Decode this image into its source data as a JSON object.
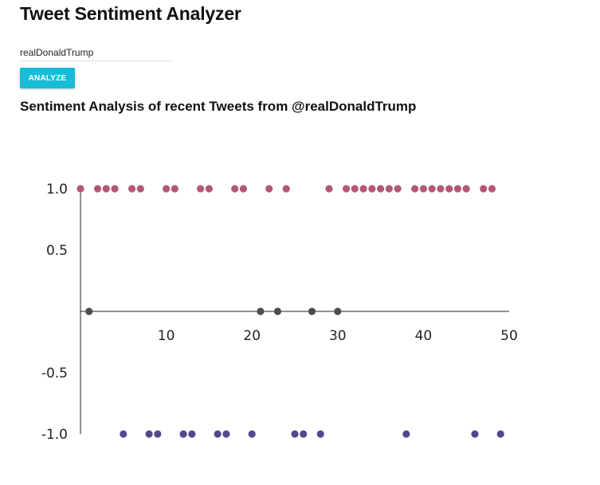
{
  "app": {
    "title": "Tweet Sentiment Analyzer"
  },
  "form": {
    "username_value": "realDonaldTrump",
    "analyze_label": "ANALYZE"
  },
  "chart_heading": "Sentiment Analysis of recent Tweets from @realDonaldTrump",
  "colors": {
    "button": "#17bcd6",
    "positive": "#b35874",
    "neutral": "#4d4d4d",
    "negative": "#53488f",
    "axis": "#222222"
  },
  "chart_data": {
    "type": "scatter",
    "title": "Sentiment Analysis of recent Tweets from @realDonaldTrump",
    "xlabel": "",
    "ylabel": "",
    "xlim": [
      0,
      50
    ],
    "ylim": [
      -1,
      1
    ],
    "x_ticks": [
      10,
      20,
      30,
      40,
      50
    ],
    "y_ticks": [
      1.0,
      0.5,
      -0.5,
      -1.0
    ],
    "x_tick_labels": [
      "10",
      "20",
      "30",
      "40",
      "50"
    ],
    "y_tick_labels": [
      "1.0",
      "0.5",
      "-0.5",
      "-1.0"
    ],
    "grid": false,
    "points": [
      {
        "x": 0,
        "y": 1
      },
      {
        "x": 1,
        "y": 0
      },
      {
        "x": 2,
        "y": 1
      },
      {
        "x": 3,
        "y": 1
      },
      {
        "x": 4,
        "y": 1
      },
      {
        "x": 5,
        "y": -1
      },
      {
        "x": 6,
        "y": 1
      },
      {
        "x": 7,
        "y": 1
      },
      {
        "x": 8,
        "y": -1
      },
      {
        "x": 9,
        "y": -1
      },
      {
        "x": 10,
        "y": 1
      },
      {
        "x": 11,
        "y": 1
      },
      {
        "x": 12,
        "y": -1
      },
      {
        "x": 13,
        "y": -1
      },
      {
        "x": 14,
        "y": 1
      },
      {
        "x": 15,
        "y": 1
      },
      {
        "x": 16,
        "y": -1
      },
      {
        "x": 17,
        "y": -1
      },
      {
        "x": 18,
        "y": 1
      },
      {
        "x": 19,
        "y": 1
      },
      {
        "x": 20,
        "y": -1
      },
      {
        "x": 21,
        "y": 0
      },
      {
        "x": 22,
        "y": 1
      },
      {
        "x": 23,
        "y": 0
      },
      {
        "x": 24,
        "y": 1
      },
      {
        "x": 25,
        "y": -1
      },
      {
        "x": 26,
        "y": -1
      },
      {
        "x": 27,
        "y": 0
      },
      {
        "x": 28,
        "y": -1
      },
      {
        "x": 29,
        "y": 1
      },
      {
        "x": 30,
        "y": 0
      },
      {
        "x": 31,
        "y": 1
      },
      {
        "x": 32,
        "y": 1
      },
      {
        "x": 33,
        "y": 1
      },
      {
        "x": 34,
        "y": 1
      },
      {
        "x": 35,
        "y": 1
      },
      {
        "x": 36,
        "y": 1
      },
      {
        "x": 37,
        "y": 1
      },
      {
        "x": 38,
        "y": -1
      },
      {
        "x": 39,
        "y": 1
      },
      {
        "x": 40,
        "y": 1
      },
      {
        "x": 41,
        "y": 1
      },
      {
        "x": 42,
        "y": 1
      },
      {
        "x": 43,
        "y": 1
      },
      {
        "x": 44,
        "y": 1
      },
      {
        "x": 45,
        "y": 1
      },
      {
        "x": 46,
        "y": -1
      },
      {
        "x": 47,
        "y": 1
      },
      {
        "x": 48,
        "y": 1
      },
      {
        "x": 49,
        "y": -1
      }
    ]
  }
}
